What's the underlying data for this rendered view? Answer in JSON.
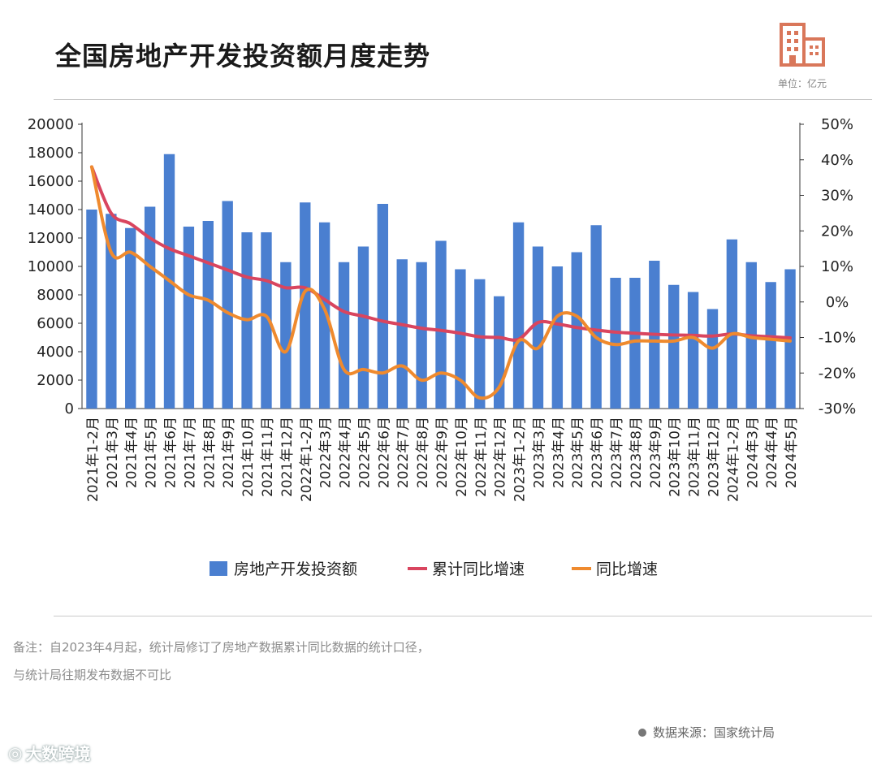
{
  "header": {
    "title": "全国房地产开发投资额月度走势",
    "unit": "单位：亿元"
  },
  "colors": {
    "bar": "#4a7fd0",
    "cum_line": "#d9455f",
    "yoy_line": "#ef8a2e",
    "icon": "#d9775a"
  },
  "chart_data": {
    "type": "bar",
    "categories": [
      "2021年1-2月",
      "2021年3月",
      "2021年4月",
      "2021年5月",
      "2021年6月",
      "2021年7月",
      "2021年8月",
      "2021年9月",
      "2021年10月",
      "2021年11月",
      "2021年12月",
      "2022年1-2月",
      "2022年3月",
      "2022年4月",
      "2022年5月",
      "2022年6月",
      "2022年7月",
      "2022年8月",
      "2022年9月",
      "2022年10月",
      "2022年11月",
      "2022年12月",
      "2023年1-2月",
      "2023年3月",
      "2023年4月",
      "2023年5月",
      "2023年6月",
      "2023年7月",
      "2023年8月",
      "2023年9月",
      "2023年10月",
      "2023年11月",
      "2023年12月",
      "2024年1-2月",
      "2024年3月",
      "2024年4月",
      "2024年5月"
    ],
    "series": [
      {
        "name": "房地产开发投资额",
        "type": "bar",
        "axis": "left",
        "values": [
          14000,
          13700,
          12700,
          14200,
          17900,
          12800,
          13200,
          14600,
          12400,
          12400,
          10300,
          14500,
          13100,
          10300,
          11400,
          14400,
          10500,
          10300,
          11800,
          9800,
          9100,
          7900,
          13100,
          11400,
          10000,
          11000,
          12900,
          9200,
          9200,
          10400,
          8700,
          8200,
          7000,
          11900,
          10300,
          8900,
          9800
        ]
      },
      {
        "name": "累计同比增速",
        "type": "line",
        "axis": "right",
        "values": [
          38,
          25,
          22,
          18,
          15,
          13,
          11,
          9,
          7,
          6,
          4,
          4,
          0.7,
          -2.7,
          -4,
          -5.4,
          -6.4,
          -7.4,
          -8,
          -8.8,
          -9.8,
          -10,
          -10.5,
          -5.8,
          -6.2,
          -7.2,
          -7.9,
          -8.5,
          -8.8,
          -9.1,
          -9.3,
          -9.4,
          -9.6,
          -9.0,
          -9.5,
          -9.8,
          -10.1
        ]
      },
      {
        "name": "同比增速",
        "type": "line",
        "axis": "right",
        "values": [
          38,
          14,
          14,
          10,
          6,
          2,
          0.5,
          -3,
          -5,
          -4,
          -14,
          3,
          -2,
          -19,
          -19,
          -20,
          -18,
          -22,
          -20,
          -22,
          -27,
          -24,
          -11,
          -13,
          -4,
          -4,
          -10,
          -12,
          -11,
          -11,
          -11,
          -10,
          -13,
          -9,
          -10,
          -10.5,
          -11
        ]
      }
    ],
    "left_axis": {
      "ylim": [
        0,
        20000
      ],
      "ticks": [
        "0",
        "2000",
        "4000",
        "6000",
        "8000",
        "10000",
        "12000",
        "14000",
        "16000",
        "18000",
        "20000"
      ]
    },
    "right_axis": {
      "ylim": [
        -30,
        50
      ],
      "ticks": [
        "-30%",
        "-20%",
        "-10%",
        "0%",
        "10%",
        "20%",
        "30%",
        "40%",
        "50%"
      ]
    },
    "legend": [
      "房地产开发投资额",
      "累计同比增速",
      "同比增速"
    ],
    "legend_position": "bottom"
  },
  "notes": {
    "line1": "备注：自2023年4月起，统计局修订了房地产数据累计同比数据的统计口径，",
    "line2": "与统计局往期发布数据不可比"
  },
  "source": "数据来源：国家统计局",
  "brand": "大数跨境"
}
